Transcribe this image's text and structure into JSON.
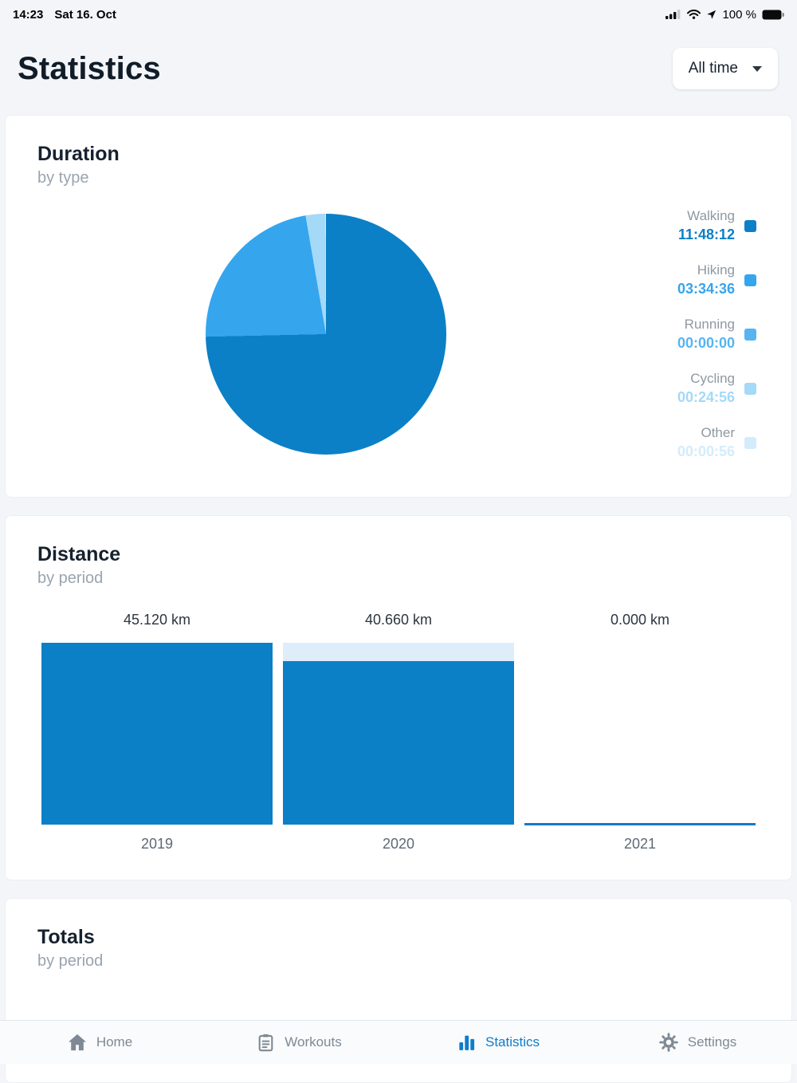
{
  "status_bar": {
    "time": "14:23",
    "date": "Sat 16. Oct",
    "battery": "100 %"
  },
  "header": {
    "title": "Statistics",
    "period_selector_value": "All time"
  },
  "accent": "#0e7dc9",
  "duration_card": {
    "title": "Duration",
    "subtitle": "by type",
    "chart_data": {
      "type": "pie",
      "title": "Duration by type",
      "legend_position": "right",
      "series": [
        {
          "name": "Walking",
          "value_label": "11:48:12",
          "seconds": 42492,
          "color": "#0b80c6"
        },
        {
          "name": "Hiking",
          "value_label": "03:34:36",
          "seconds": 12876,
          "color": "#35a5ee"
        },
        {
          "name": "Running",
          "value_label": "00:00:00",
          "seconds": 0,
          "color": "#56b4f1"
        },
        {
          "name": "Cycling",
          "value_label": "00:24:56",
          "seconds": 1496,
          "color": "#a4d9f8"
        },
        {
          "name": "Other",
          "value_label": "00:00:56",
          "seconds": 56,
          "color": "#d3ecfc"
        }
      ]
    }
  },
  "distance_card": {
    "title": "Distance",
    "subtitle": "by period",
    "chart_data": {
      "type": "bar",
      "title": "Distance by period",
      "categories": [
        "2019",
        "2020",
        "2021"
      ],
      "values": [
        45.12,
        40.66,
        0.0
      ],
      "value_labels": [
        "45.120 km",
        "40.660 km",
        "0.000 km"
      ],
      "ylim": [
        0,
        45.12
      ],
      "colors": {
        "bar": "#0b80c6",
        "track": "#ddedf9",
        "zero_line": "#1778c8"
      }
    }
  },
  "totals_card": {
    "title": "Totals",
    "subtitle": "by period"
  },
  "tab_bar": {
    "active_color": "#0e7dc9",
    "inactive_color": "#7e8994",
    "items": [
      {
        "label": "Home",
        "icon": "home-icon",
        "active": false
      },
      {
        "label": "Workouts",
        "icon": "workouts-icon",
        "active": false
      },
      {
        "label": "Statistics",
        "icon": "statistics-icon",
        "active": true
      },
      {
        "label": "Settings",
        "icon": "settings-icon",
        "active": false
      }
    ]
  }
}
